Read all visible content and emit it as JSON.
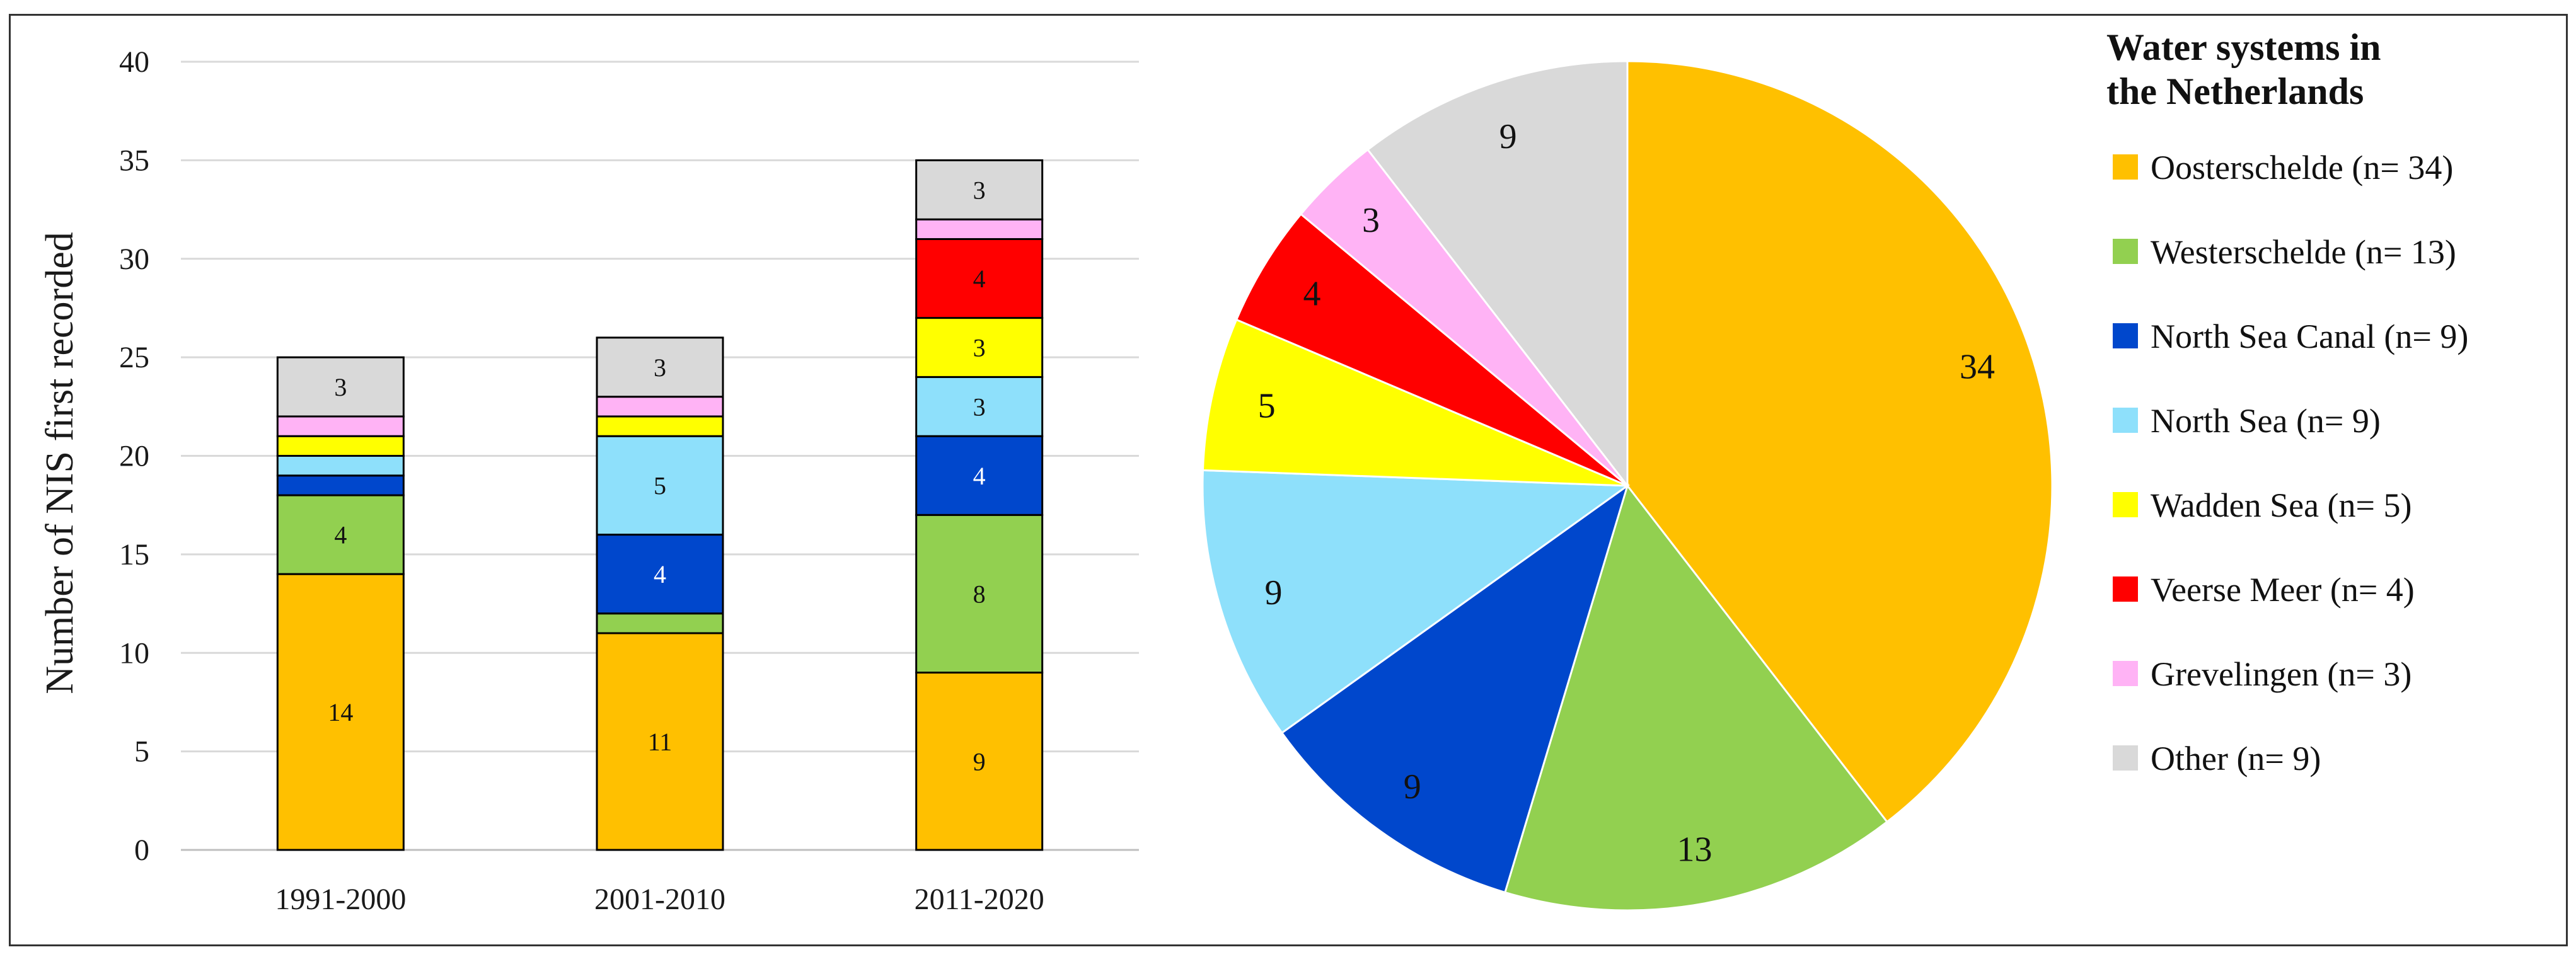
{
  "colors": {
    "Oosterschelde": "#FFC000",
    "Westerschelde": "#92D050",
    "North Sea Canal": "#0047CC",
    "North Sea": "#8EE0FB",
    "Wadden Sea": "#FFFF00",
    "Veerse Meer": "#FF0000",
    "Grevelingen": "#FFB3F5",
    "Other": "#D9D9D9"
  },
  "chart_data": [
    {
      "type": "bar",
      "stacked": true,
      "ylabel": "Number of NIS first recorded",
      "xlabel": "",
      "ylim": [
        0,
        40
      ],
      "yticks": [
        0,
        5,
        10,
        15,
        20,
        25,
        30,
        35,
        40
      ],
      "grid": true,
      "categories": [
        "1991-2000",
        "2001-2010",
        "2011-2020"
      ],
      "series": [
        {
          "name": "Oosterschelde",
          "values": [
            14,
            11,
            9
          ],
          "labels": [
            "14",
            "11",
            "9"
          ]
        },
        {
          "name": "Westerschelde",
          "values": [
            4,
            1,
            8
          ],
          "labels": [
            "4",
            "",
            "8"
          ]
        },
        {
          "name": "North Sea Canal",
          "values": [
            1,
            4,
            4
          ],
          "labels": [
            "",
            "4",
            "4"
          ]
        },
        {
          "name": "North Sea",
          "values": [
            1,
            5,
            3
          ],
          "labels": [
            "",
            "5",
            "3"
          ]
        },
        {
          "name": "Wadden Sea",
          "values": [
            1,
            1,
            3
          ],
          "labels": [
            "",
            "",
            "3"
          ]
        },
        {
          "name": "Veerse Meer",
          "values": [
            0,
            0,
            4
          ],
          "labels": [
            "",
            "",
            "4"
          ]
        },
        {
          "name": "Grevelingen",
          "values": [
            1,
            1,
            1
          ],
          "labels": [
            "",
            "",
            ""
          ]
        },
        {
          "name": "Other",
          "values": [
            3,
            3,
            3
          ],
          "labels": [
            "3",
            "3",
            "3"
          ]
        }
      ]
    },
    {
      "type": "pie",
      "slices": [
        {
          "name": "Oosterschelde",
          "value": 34,
          "label": "34"
        },
        {
          "name": "Westerschelde",
          "value": 13,
          "label": "13"
        },
        {
          "name": "North Sea Canal",
          "value": 9,
          "label": "9"
        },
        {
          "name": "North Sea",
          "value": 9,
          "label": "9"
        },
        {
          "name": "Wadden Sea",
          "value": 5,
          "label": "5"
        },
        {
          "name": "Veerse Meer",
          "value": 4,
          "label": "4"
        },
        {
          "name": "Grevelingen",
          "value": 3,
          "label": "3"
        },
        {
          "name": "Other",
          "value": 9,
          "label": "9"
        }
      ]
    }
  ],
  "legend": {
    "title_line1": "Water systems in",
    "title_line2": "the Netherlands",
    "items": [
      {
        "name": "Oosterschelde",
        "label": "Oosterschelde (n= 34)"
      },
      {
        "name": "Westerschelde",
        "label": "Westerschelde (n= 13)"
      },
      {
        "name": "North Sea Canal",
        "label": "North Sea Canal (n= 9)"
      },
      {
        "name": "North Sea",
        "label": "North Sea (n= 9)"
      },
      {
        "name": "Wadden Sea",
        "label": "Wadden Sea (n= 5)"
      },
      {
        "name": "Veerse Meer",
        "label": "Veerse Meer (n= 4)"
      },
      {
        "name": "Grevelingen",
        "label": "Grevelingen (n= 3)"
      },
      {
        "name": "Other",
        "label": "Other (n= 9)"
      }
    ]
  }
}
